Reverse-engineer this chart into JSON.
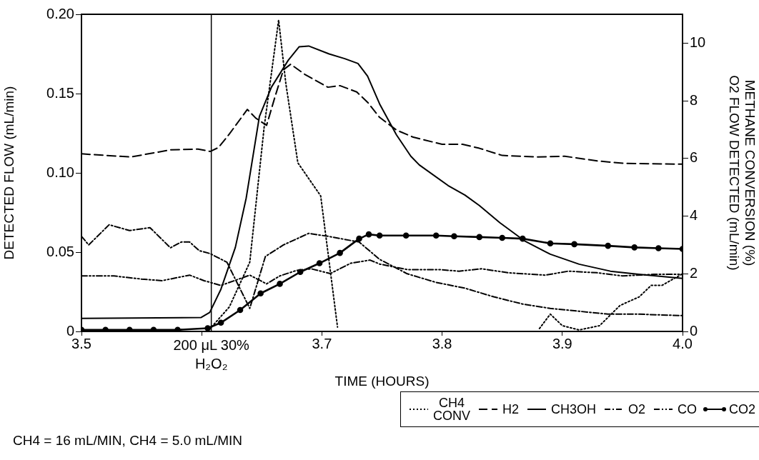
{
  "chart_data": {
    "type": "line",
    "xlabel": "TIME (HOURS)",
    "ylabel": "DETECTED FLOW (mL/min)",
    "y2label": "METHANE CONVERSION (%)\nO2 FLOW DETECTED (mL/min)",
    "annotations": [
      "CH4 = 16 mL/MIN, CH4 = 5.0 mL/MIN"
    ],
    "xlim": [
      3.5,
      4.0
    ],
    "xticks": [
      3.5,
      {
        "value": 3.6,
        "label": null
      },
      3.7,
      3.8,
      3.9,
      {
        "value": 4.0,
        "label": "4.0"
      }
    ],
    "ylim": [
      0,
      0.2
    ],
    "yticks": [
      0,
      0.05,
      {
        "value": 0.1,
        "label": "0.10"
      },
      0.15,
      {
        "value": 0.2,
        "label": "0.20"
      }
    ],
    "y2lim": [
      0,
      11
    ],
    "y2ticks": [
      0,
      2,
      4,
      6,
      8,
      10
    ],
    "grid": false,
    "legend": "bottom right",
    "ref_lines": [
      {
        "axis": "x",
        "value": 3.608,
        "label": "200 μL 30% H₂O₂",
        "color": "#000000",
        "line_style": "solid"
      }
    ],
    "series": [
      {
        "name": "CH4 CONV",
        "color": "#000000",
        "axis": "y2",
        "line_style": "dotted",
        "marker": "none",
        "x": [
          3.5,
          3.605,
          3.623,
          3.64,
          3.652,
          3.664,
          3.67,
          3.68,
          3.699,
          3.713,
          3.8,
          3.881,
          3.89,
          3.9,
          3.914,
          3.931,
          3.948,
          3.964,
          3.974,
          3.983,
          4.0
        ],
        "values": [
          0,
          0,
          0.85,
          2.4,
          7.1,
          10.8,
          8.6,
          5.85,
          4.7,
          0.15,
          null,
          0.1,
          0.6,
          0.2,
          0.05,
          0.2,
          0.9,
          1.2,
          1.6,
          1.6,
          2.0
        ]
      },
      {
        "name": "H2",
        "color": "#000000",
        "line_style": "dashed",
        "marker": "none",
        "x": [
          3.5,
          3.541,
          3.574,
          3.597,
          3.607,
          3.614,
          3.623,
          3.638,
          3.645,
          3.654,
          3.661,
          3.668,
          3.674,
          3.686,
          3.705,
          3.715,
          3.729,
          3.738,
          3.748,
          3.762,
          3.776,
          3.8,
          3.817,
          3.831,
          3.85,
          3.879,
          3.902,
          3.929,
          3.952,
          4.0
        ],
        "values": [
          0.112,
          0.11,
          0.1145,
          0.115,
          0.1135,
          0.116,
          0.1245,
          0.14,
          0.1345,
          0.13,
          0.148,
          0.165,
          0.1685,
          0.162,
          0.154,
          0.155,
          0.151,
          0.1445,
          0.135,
          0.127,
          0.1225,
          0.118,
          0.118,
          0.1155,
          0.111,
          0.11,
          0.1105,
          0.1075,
          0.106,
          0.1055
        ]
      },
      {
        "name": "CH3OH",
        "color": "#000000",
        "line_style": "solid",
        "marker": "none",
        "x": [
          3.5,
          3.5996,
          3.6067,
          3.616,
          3.628,
          3.637,
          3.648,
          3.658,
          3.672,
          3.681,
          3.689,
          3.706,
          3.719,
          3.73,
          3.738,
          3.748,
          3.762,
          3.774,
          3.781,
          3.805,
          3.819,
          3.831,
          3.848,
          3.869,
          3.89,
          3.914,
          3.94,
          3.962,
          4.0
        ],
        "values": [
          0.0082,
          0.0088,
          0.012,
          0.0266,
          0.053,
          0.084,
          0.1355,
          0.154,
          0.171,
          0.1795,
          0.18,
          0.175,
          0.172,
          0.169,
          0.161,
          0.1435,
          0.124,
          0.1105,
          0.105,
          0.092,
          0.086,
          0.0794,
          0.0686,
          0.0569,
          0.0487,
          0.0424,
          0.038,
          0.0361,
          0.0334
        ]
      },
      {
        "name": "O2",
        "color": "#000000",
        "axis": "y2",
        "line_style": "dashdot",
        "marker": "none",
        "x": [
          3.5,
          3.506,
          3.523,
          3.54,
          3.557,
          3.574,
          3.583,
          3.59,
          3.598,
          3.607,
          3.621,
          3.64,
          3.653,
          3.668,
          3.689,
          3.705,
          3.731,
          3.748,
          3.771,
          3.795,
          3.819,
          3.843,
          3.867,
          3.89,
          3.914,
          3.938,
          3.962,
          4.0
        ],
        "values": [
          3.3,
          3.0,
          3.7,
          3.5,
          3.6,
          2.9,
          3.1,
          3.1,
          2.8,
          2.7,
          2.4,
          0.8,
          2.6,
          3.0,
          3.4,
          3.3,
          3.1,
          2.5,
          2.0,
          1.7,
          1.5,
          1.2,
          0.95,
          0.8,
          0.7,
          0.6,
          0.6,
          0.55
        ]
      },
      {
        "name": "CO",
        "color": "#000000",
        "line_style": "dashdotdot",
        "marker": "none",
        "x": [
          3.5,
          3.527,
          3.55,
          3.567,
          3.59,
          3.602,
          3.616,
          3.64,
          3.654,
          3.665,
          3.679,
          3.691,
          3.707,
          3.724,
          3.74,
          3.748,
          3.771,
          3.798,
          3.814,
          3.833,
          3.855,
          3.886,
          3.905,
          3.929,
          3.95,
          3.976,
          4.0
        ],
        "values": [
          0.035,
          0.035,
          0.033,
          0.032,
          0.0355,
          0.032,
          0.029,
          0.0355,
          0.03,
          0.035,
          0.0385,
          0.0395,
          0.0365,
          0.043,
          0.045,
          0.0425,
          0.039,
          0.039,
          0.038,
          0.0395,
          0.037,
          0.0355,
          0.038,
          0.037,
          0.035,
          0.036,
          0.036
        ]
      },
      {
        "name": "CO2",
        "color": "#000000",
        "line_style": "solid",
        "marker": "circle",
        "x": [
          3.5,
          3.52,
          3.54,
          3.56,
          3.58,
          3.605,
          3.616,
          3.632,
          3.649,
          3.665,
          3.682,
          3.698,
          3.715,
          3.731,
          3.739,
          3.748,
          3.77,
          3.795,
          3.81,
          3.831,
          3.85,
          3.867,
          3.89,
          3.91,
          3.938,
          3.96,
          3.98,
          4.0
        ],
        "values": [
          0.001,
          0.001,
          0.001,
          0.001,
          0.001,
          0.002,
          0.0055,
          0.0135,
          0.024,
          0.03,
          0.0375,
          0.043,
          0.0495,
          0.0585,
          0.0612,
          0.0605,
          0.0605,
          0.0605,
          0.06,
          0.0595,
          0.059,
          0.0585,
          0.0555,
          0.055,
          0.054,
          0.053,
          0.0525,
          0.052
        ]
      }
    ]
  }
}
